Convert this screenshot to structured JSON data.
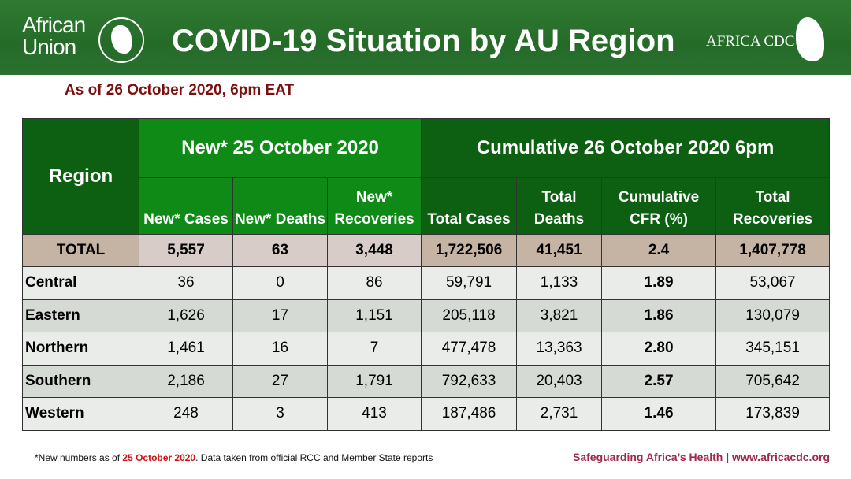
{
  "header": {
    "logo_left_line1": "African",
    "logo_left_line2": "Union",
    "title": "COVID-19 Situation by AU Region",
    "logo_right": "AFRICA CDC"
  },
  "subtitle": "As of 26 October 2020, 6pm EAT",
  "table": {
    "region_header": "Region",
    "group_new": "New* 25 October 2020",
    "group_cumulative": "Cumulative 26 October 2020 6pm",
    "columns": [
      "New* Cases",
      "New* Deaths",
      "New* Recoveries",
      "Total Cases",
      "Total Deaths",
      "Cumulative CFR (%)",
      "Total Recoveries"
    ],
    "total": [
      "TOTAL",
      "5,557",
      "63",
      "3,448",
      "1,722,506",
      "41,451",
      "2.4",
      "1,407,778"
    ],
    "rows": [
      [
        "Central",
        "36",
        "0",
        "86",
        "59,791",
        "1,133",
        "1.89",
        "53,067"
      ],
      [
        "Eastern",
        "1,626",
        "17",
        "1,151",
        "205,118",
        "3,821",
        "1.86",
        "130,079"
      ],
      [
        "Northern",
        "1,461",
        "16",
        "7",
        "477,478",
        "13,363",
        "2.80",
        "345,151"
      ],
      [
        "Southern",
        "2,186",
        "27",
        "1,791",
        "792,633",
        "20,403",
        "2.57",
        "705,642"
      ],
      [
        "Western",
        "248",
        "3",
        "413",
        "187,486",
        "2,731",
        "1.46",
        "173,839"
      ]
    ]
  },
  "footer": {
    "note_prefix": "*New numbers as of ",
    "note_date": "25 October 2020",
    "note_suffix": ". Data taken from official RCC and Member State reports",
    "tagline": "Safeguarding Africa’s Health | www.africacdc.org"
  }
}
